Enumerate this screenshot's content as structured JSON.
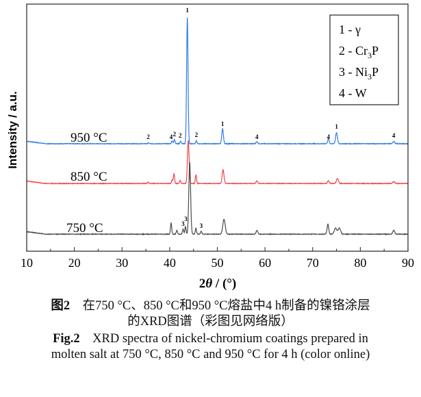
{
  "chart_data": {
    "type": "line",
    "xlabel_main": "2",
    "xlabel_theta": "θ",
    "xlabel_unit": " / (°)",
    "ylabel": "Intensity / a.u.",
    "xlim": [
      10,
      90
    ],
    "ylim": [
      0,
      100
    ],
    "xticks": [
      10,
      20,
      30,
      40,
      50,
      60,
      70,
      80,
      90
    ],
    "minor_xticks_step": 5,
    "y_tick_labels": false,
    "grid": false,
    "legend": {
      "placement": "top-right",
      "entries": [
        {
          "prefix": "1 - ",
          "main": "γ",
          "sub": "",
          "tail": ""
        },
        {
          "prefix": "2 - ",
          "main": "Cr",
          "sub": "3",
          "tail": "P"
        },
        {
          "prefix": "3 - ",
          "main": "Ni",
          "sub": "3",
          "tail": "P"
        },
        {
          "prefix": "4 - ",
          "main": "W",
          "sub": "",
          "tail": ""
        }
      ]
    },
    "series": [
      {
        "name": "950 °C",
        "color": "#2f7be6",
        "baseline": 43.5,
        "peaks": [
          [
            35.5,
            0.3,
            0.3
          ],
          [
            40.5,
            1.2,
            0.3
          ],
          [
            41.0,
            1.8,
            0.3
          ],
          [
            42.3,
            1.0,
            0.3
          ],
          [
            43.7,
            51,
            0.35
          ],
          [
            45.6,
            1.2,
            0.3
          ],
          [
            51.1,
            6,
            0.4
          ],
          [
            58.3,
            0.8,
            0.4
          ],
          [
            73.3,
            1.8,
            0.4
          ],
          [
            75.0,
            4.5,
            0.45
          ],
          [
            87.0,
            0.9,
            0.5
          ]
        ]
      },
      {
        "name": "850 °C",
        "color": "#f0434a",
        "baseline": 27.4,
        "peaks": [
          [
            35.5,
            0.5,
            0.3
          ],
          [
            40.5,
            1.5,
            0.3
          ],
          [
            40.9,
            4,
            0.3
          ],
          [
            42.2,
            1.2,
            0.3
          ],
          [
            43.9,
            17.5,
            0.4
          ],
          [
            45.5,
            3.5,
            0.3
          ],
          [
            51.2,
            5.5,
            0.45
          ],
          [
            58.3,
            1.0,
            0.4
          ],
          [
            73.3,
            1.2,
            0.4
          ],
          [
            75.2,
            2,
            0.5
          ],
          [
            87.0,
            0.8,
            0.5
          ]
        ]
      },
      {
        "name": "750 °C",
        "color": "#4a4a4a",
        "baseline": 6.9,
        "peaks": [
          [
            40.3,
            4.5,
            0.3
          ],
          [
            41.5,
            1.5,
            0.3
          ],
          [
            42.8,
            2,
            0.3
          ],
          [
            43.3,
            3,
            0.3
          ],
          [
            44.2,
            29,
            0.45
          ],
          [
            45.5,
            2.5,
            0.3
          ],
          [
            46.6,
            1.2,
            0.3
          ],
          [
            51.4,
            6,
            0.6
          ],
          [
            58.3,
            1.5,
            0.4
          ],
          [
            73.2,
            4,
            0.4
          ],
          [
            74.8,
            2.5,
            0.6
          ],
          [
            75.6,
            2.5,
            0.6
          ],
          [
            87.0,
            1.5,
            0.5
          ]
        ]
      }
    ],
    "annotations": [
      {
        "text": "1",
        "x": 43.7,
        "y": 96.7
      },
      {
        "text": "2",
        "x": 35.5,
        "y": 45.4
      },
      {
        "text": "4",
        "x": 40.3,
        "y": 45.4
      },
      {
        "text": "2",
        "x": 41.0,
        "y": 46.5
      },
      {
        "text": "2",
        "x": 42.2,
        "y": 46.0
      },
      {
        "text": "2",
        "x": 45.6,
        "y": 46.2
      },
      {
        "text": "1",
        "x": 51.1,
        "y": 50.7
      },
      {
        "text": "4",
        "x": 58.3,
        "y": 45.4
      },
      {
        "text": "4",
        "x": 73.3,
        "y": 45.4
      },
      {
        "text": "1",
        "x": 75.0,
        "y": 49.6
      },
      {
        "text": "4",
        "x": 87.0,
        "y": 46.0
      },
      {
        "text": "3",
        "x": 42.8,
        "y": 10.2
      },
      {
        "text": "3",
        "x": 43.4,
        "y": 12.2
      },
      {
        "text": "3",
        "x": 46.6,
        "y": 9.4
      }
    ]
  },
  "caption": {
    "cn_label": "图2",
    "cn_line1": "在750 °C、850 °C和950 °C熔盐中4 h制备的镍铬涂层",
    "cn_line2": "的XRD图谱（彩图见网络版）",
    "en_label": "Fig.2",
    "en_line1": "XRD spectra of nickel-chromium coatings prepared in",
    "en_line2": "molten salt at 750 °C, 850 °C and 950 °C for 4 h (color online)"
  }
}
